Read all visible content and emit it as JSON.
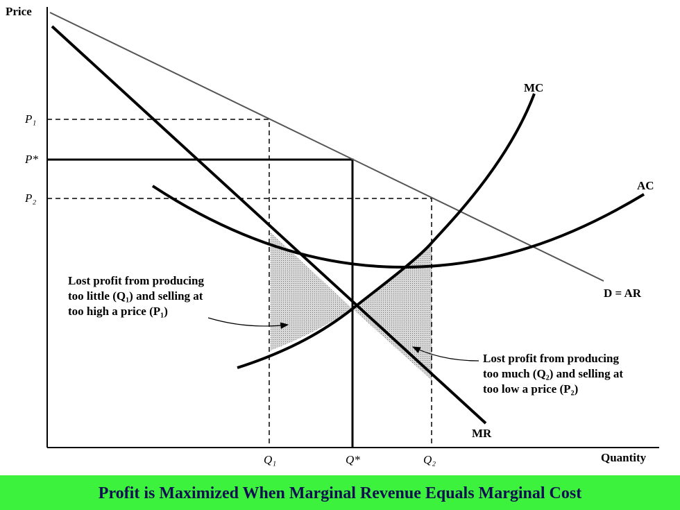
{
  "axes": {
    "y_label": "Price",
    "x_label": "Quantity"
  },
  "price_labels": [
    "P₁",
    "P*",
    "P₂"
  ],
  "quantity_labels": [
    "Q₁",
    "Q*",
    "Q₂"
  ],
  "curves": {
    "mc": "MC",
    "ac": "AC",
    "demand": "D = AR",
    "mr": "MR"
  },
  "annotations": [
    [
      "Lost profit from producing",
      "too little (Q₁) and selling at",
      "too high a price (P₁)"
    ],
    [
      "Lost profit from producing",
      "too much (Q₂) and selling at",
      "too low a price (P₂)"
    ]
  ],
  "caption": "Profit is Maximized When Marginal Revenue Equals Marginal Cost"
}
